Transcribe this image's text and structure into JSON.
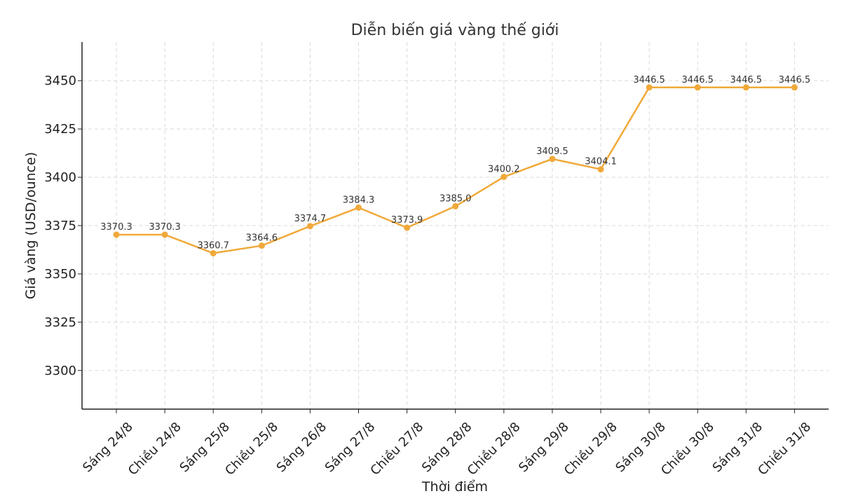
{
  "chart_data": {
    "type": "line",
    "title": "Diễn biến giá vàng thế giới",
    "xlabel": "Thời điểm",
    "ylabel": "Giá vàng (USD/ounce)",
    "categories": [
      "Sáng 24/8",
      "Chiều 24/8",
      "Sáng 25/8",
      "Chiều 25/8",
      "Sáng 26/8",
      "Sáng 27/8",
      "Chiều 27/8",
      "Sáng 28/8",
      "Chiều 28/8",
      "Sáng 29/8",
      "Chiều 29/8",
      "Sáng 30/8",
      "Chiều 30/8",
      "Sáng 31/8",
      "Chiều 31/8"
    ],
    "values": [
      3370.3,
      3370.3,
      3360.7,
      3364.6,
      3374.7,
      3384.3,
      3373.9,
      3385.0,
      3400.2,
      3409.5,
      3404.1,
      3446.5,
      3446.5,
      3446.5,
      3446.5
    ],
    "data_labels": [
      "3370.3",
      "3370.3",
      "3360.7",
      "3364.6",
      "3374.7",
      "3384.3",
      "3373.9",
      "3385.0",
      "3400.2",
      "3409.5",
      "3404.1",
      "3446.5",
      "3446.5",
      "3446.5",
      "3446.5"
    ],
    "yticks": [
      3300,
      3325,
      3350,
      3375,
      3400,
      3425,
      3450
    ],
    "ylim": [
      3280,
      3470
    ],
    "grid": true,
    "color": "#f0a93a"
  }
}
